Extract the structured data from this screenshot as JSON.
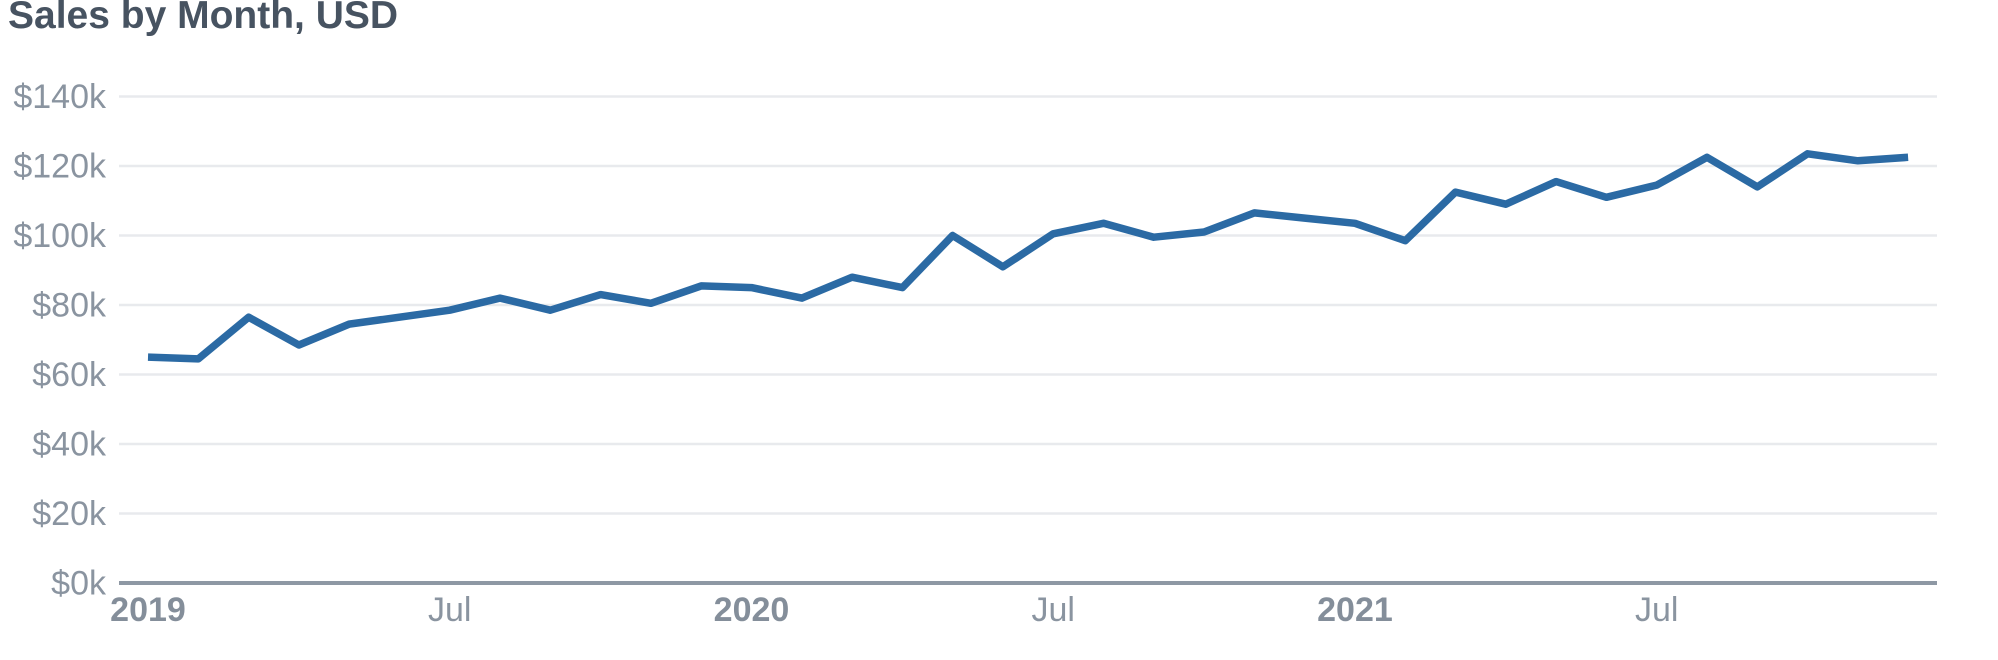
{
  "title": "Sales by Month, USD",
  "colors": {
    "line": "#2b6aa4",
    "title_text": "#475361",
    "tick_text": "#8a94a0",
    "gridline": "#e8eaed",
    "baseline": "#8e98a4",
    "background": "#ffffff"
  },
  "chart_data": {
    "type": "line",
    "title": "Sales by Month, USD",
    "currency": "USD",
    "xlabel": "",
    "ylabel": "",
    "ylim": [
      0,
      140000
    ],
    "grid": "horizontal",
    "legend": "none",
    "line_color": "#2b6aa4",
    "x": [
      "Jan 2019",
      "Feb 2019",
      "Mar 2019",
      "Apr 2019",
      "May 2019",
      "Jun 2019",
      "Jul 2019",
      "Aug 2019",
      "Sep 2019",
      "Oct 2019",
      "Nov 2019",
      "Dec 2019",
      "Jan 2020",
      "Feb 2020",
      "Mar 2020",
      "Apr 2020",
      "May 2020",
      "Jun 2020",
      "Jul 2020",
      "Aug 2020",
      "Sep 2020",
      "Oct 2020",
      "Nov 2020",
      "Dec 2020",
      "Jan 2021",
      "Feb 2021",
      "Mar 2021",
      "Apr 2021",
      "May 2021",
      "Jun 2021",
      "Jul 2021",
      "Aug 2021",
      "Sep 2021",
      "Oct 2021",
      "Nov 2021",
      "Dec 2021"
    ],
    "series": [
      {
        "name": "Sales",
        "values": [
          65000,
          64500,
          76500,
          68500,
          74500,
          76500,
          78500,
          82000,
          78500,
          83000,
          80500,
          85500,
          85000,
          82000,
          88000,
          85000,
          100000,
          91000,
          100500,
          103500,
          99500,
          101000,
          106500,
          105000,
          103500,
          98500,
          112500,
          109000,
          115500,
          111000,
          114500,
          122500,
          114000,
          123500,
          121500,
          122500
        ]
      }
    ],
    "y_ticks": [
      {
        "value": 140000,
        "label": "$140k"
      },
      {
        "value": 120000,
        "label": "$120k"
      },
      {
        "value": 100000,
        "label": "$100k"
      },
      {
        "value": 80000,
        "label": "$80k"
      },
      {
        "value": 60000,
        "label": "$60k"
      },
      {
        "value": 40000,
        "label": "$40k"
      },
      {
        "value": 20000,
        "label": "$20k"
      },
      {
        "value": 0,
        "label": "$0k"
      }
    ],
    "x_ticks": [
      {
        "index": 0,
        "label": "2019",
        "bold": true
      },
      {
        "index": 6,
        "label": "Jul",
        "bold": false
      },
      {
        "index": 12,
        "label": "2020",
        "bold": true
      },
      {
        "index": 18,
        "label": "Jul",
        "bold": false
      },
      {
        "index": 24,
        "label": "2021",
        "bold": true
      },
      {
        "index": 30,
        "label": "Jul",
        "bold": false
      }
    ]
  }
}
